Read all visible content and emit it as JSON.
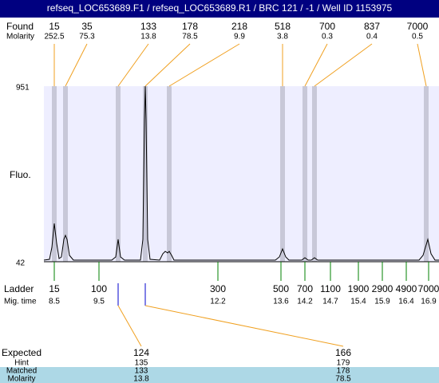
{
  "title": "refseq_LOC653689.F1 / refseq_LOC653689.R1 / BRC 121 / -1 / Well ID 1153975",
  "found": {
    "label": "Found",
    "values": [
      15,
      35,
      133,
      178,
      218,
      518,
      700,
      837,
      7000
    ]
  },
  "molarity": {
    "label": "Molarity",
    "values": [
      252.5,
      75.3,
      13.8,
      78.5,
      9.9,
      3.8,
      0.3,
      0.4,
      0.5
    ]
  },
  "y_axis": {
    "label": "Fluo.",
    "max": 951,
    "min": 42
  },
  "ladder": {
    "label": "Ladder",
    "values": [
      15,
      100,
      300,
      500,
      700,
      1100,
      1900,
      2900,
      4900,
      7000
    ]
  },
  "mig_time": {
    "label": "Mig. time",
    "values": [
      8.5,
      9.5,
      12.2,
      13.6,
      14.2,
      14.7,
      15.4,
      15.9,
      16.4,
      16.9
    ]
  },
  "expected": {
    "label": "Expected",
    "values": [
      124,
      166
    ]
  },
  "hint": {
    "label": "Hint",
    "values": [
      135,
      179
    ]
  },
  "matched": {
    "label": "Matched",
    "values": [
      133,
      178
    ]
  },
  "matched_molarity": {
    "label": "Molarity",
    "values": [
      13.8,
      78.5
    ]
  }
}
